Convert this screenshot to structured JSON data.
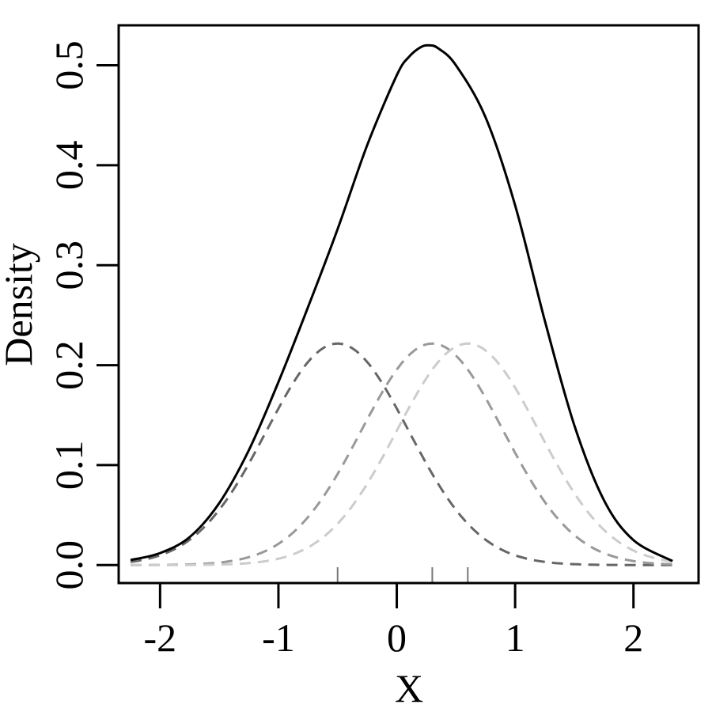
{
  "chart_data": {
    "type": "line",
    "title": "",
    "xlabel": "X",
    "ylabel": "Density",
    "xlim": [
      -2.35,
      2.55
    ],
    "ylim": [
      -0.018,
      0.54
    ],
    "xticks": [
      -2,
      -1,
      0,
      1,
      2
    ],
    "xtick_labels": [
      "-2",
      "-1",
      "0",
      "1",
      "2"
    ],
    "yticks": [
      0.0,
      0.1,
      0.2,
      0.3,
      0.4,
      0.5
    ],
    "ytick_labels": [
      "0.0",
      "0.1",
      "0.2",
      "0.3",
      "0.4",
      "0.5"
    ],
    "grid": false,
    "x_range": [
      -2.25,
      2.33
    ],
    "kde_bandwidth": 0.6,
    "rug_points": [
      -0.5,
      0.3,
      0.6
    ],
    "series": [
      {
        "style": "solid",
        "color": "#000000",
        "component": "sum",
        "points": [
          [
            -2.25,
            0.005
          ],
          [
            -2.0,
            0.012
          ],
          [
            -1.75,
            0.028
          ],
          [
            -1.5,
            0.062
          ],
          [
            -1.25,
            0.115
          ],
          [
            -1.0,
            0.183
          ],
          [
            -0.75,
            0.258
          ],
          [
            -0.5,
            0.336
          ],
          [
            -0.25,
            0.42
          ],
          [
            0.0,
            0.49
          ],
          [
            0.1,
            0.508
          ],
          [
            0.2,
            0.518
          ],
          [
            0.27,
            0.52
          ],
          [
            0.35,
            0.517
          ],
          [
            0.5,
            0.5
          ],
          [
            0.75,
            0.448
          ],
          [
            1.0,
            0.36
          ],
          [
            1.25,
            0.245
          ],
          [
            1.5,
            0.14
          ],
          [
            1.75,
            0.065
          ],
          [
            2.0,
            0.025
          ],
          [
            2.33,
            0.004
          ]
        ]
      },
      {
        "style": "dashed",
        "color": "#666666",
        "center": -0.5
      },
      {
        "style": "dashed",
        "color": "#999999",
        "center": 0.3
      },
      {
        "style": "dashed",
        "color": "#cccccc",
        "center": 0.6
      }
    ]
  }
}
